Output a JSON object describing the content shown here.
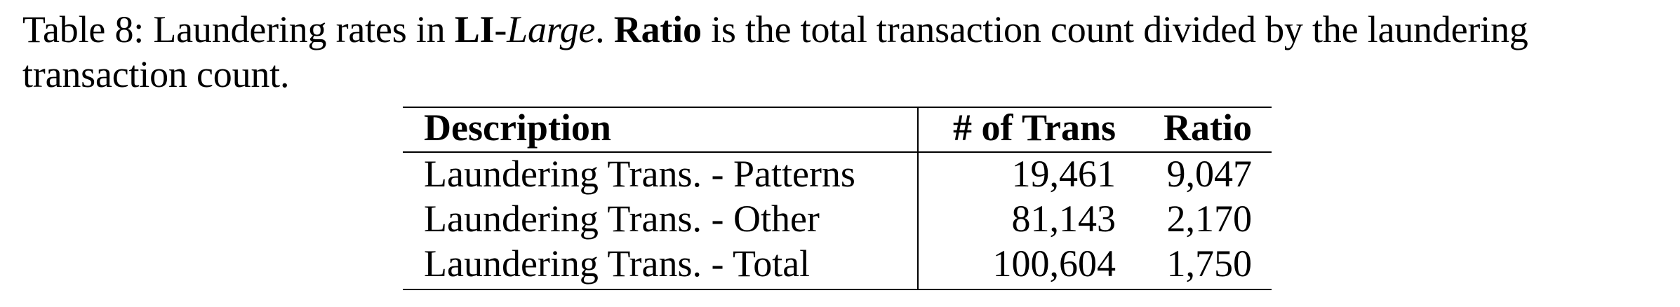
{
  "caption": {
    "label": "Table 8:",
    "text1": " Laundering rates in ",
    "dataset_bold": "LI",
    "dash": "-",
    "dataset_italic": "Large",
    "text2": ". ",
    "ratio_bold": "Ratio",
    "text3": " is the total transaction count divided by the laundering transaction count."
  },
  "table": {
    "headers": {
      "description": "Description",
      "trans": "# of Trans",
      "ratio": "Ratio"
    },
    "rows": [
      {
        "description": "Laundering Trans. - Patterns",
        "trans": "19,461",
        "ratio": "9,047"
      },
      {
        "description": "Laundering Trans. - Other",
        "trans": "81,143",
        "ratio": "2,170"
      },
      {
        "description": "Laundering Trans. - Total",
        "trans": "100,604",
        "ratio": "1,750"
      }
    ]
  }
}
